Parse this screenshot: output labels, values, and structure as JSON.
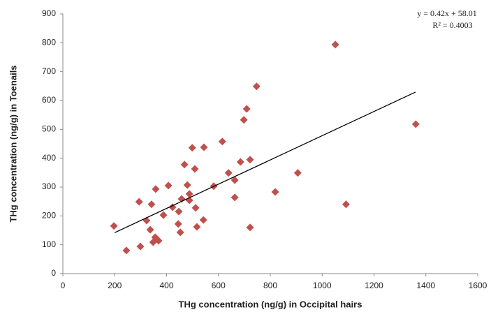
{
  "chart_data": {
    "type": "scatter",
    "x_label": "THg concentration (ng/g) in Occipital hairs",
    "y_label": "THg concentration (ng/g) in Toenails",
    "x": [
      197,
      245,
      299,
      294,
      323,
      337,
      342,
      348,
      356,
      364,
      369,
      358,
      388,
      407,
      423,
      445,
      447,
      453,
      458,
      469,
      480,
      488,
      488,
      499,
      509,
      512,
      517,
      544,
      542,
      582,
      615,
      639,
      663,
      663,
      685,
      698,
      709,
      722,
      722,
      747,
      819,
      906,
      1051,
      1092,
      1361
    ],
    "values": [
      165,
      80,
      94,
      249,
      184,
      152,
      240,
      109,
      126,
      119,
      114,
      293,
      203,
      305,
      230,
      172,
      215,
      143,
      259,
      378,
      307,
      276,
      254,
      436,
      363,
      228,
      162,
      438,
      186,
      303,
      458,
      349,
      324,
      264,
      387,
      533,
      571,
      395,
      160,
      649,
      283,
      349,
      794,
      240,
      518
    ],
    "color": "#c0504d",
    "trendline": {
      "slope": 0.42,
      "intercept": 58.01,
      "xrange": [
        200,
        1360
      ],
      "color": "#000000"
    },
    "equation": "y = 0.42x + 58.01",
    "r_squared": "R² = 0.4003",
    "xlim": [
      0,
      1600
    ],
    "xticks": [
      0,
      200,
      400,
      600,
      800,
      1000,
      1200,
      1400,
      1600
    ],
    "ylim": [
      0,
      900
    ],
    "yticks": [
      0,
      100,
      200,
      300,
      400,
      500,
      600,
      700,
      800,
      900
    ],
    "grid": false
  }
}
